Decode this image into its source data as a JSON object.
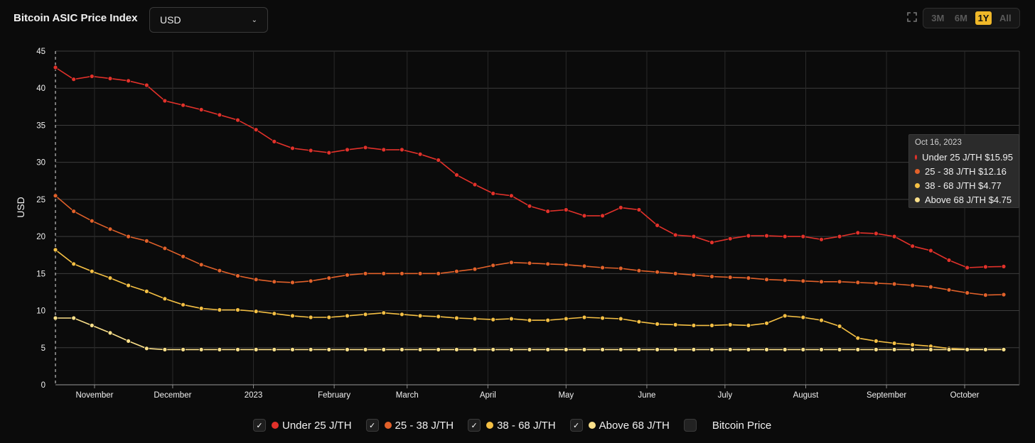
{
  "header": {
    "title": "Bitcoin ASIC Price Index"
  },
  "currency_select": {
    "value": "USD"
  },
  "range": {
    "options": [
      "3M",
      "6M",
      "1Y",
      "All"
    ],
    "selected": "1Y"
  },
  "tooltip": {
    "date": "Oct 16, 2023",
    "rows": [
      {
        "label": "Under 25 J/TH $15.95",
        "color": "#e2312a"
      },
      {
        "label": "25 - 38 J/TH $12.16",
        "color": "#e2612a"
      },
      {
        "label": "38 - 68 J/TH $4.77",
        "color": "#f5c044"
      },
      {
        "label": "Above 68 J/TH $4.75",
        "color": "#fbe08a"
      }
    ]
  },
  "legend": {
    "items": [
      {
        "label": "Under 25 J/TH",
        "color": "#e2312a",
        "checked": true
      },
      {
        "label": "25 - 38 J/TH",
        "color": "#e2612a",
        "checked": true
      },
      {
        "label": "38 - 68 J/TH",
        "color": "#f5c044",
        "checked": true
      },
      {
        "label": "Above 68 J/TH",
        "color": "#fbe08a",
        "checked": true
      },
      {
        "label": "Bitcoin Price",
        "color": "",
        "checked": false
      }
    ]
  },
  "chart_data": {
    "type": "line",
    "ylabel": "USD",
    "ylim": [
      0,
      45
    ],
    "yticks": [
      0,
      5,
      10,
      15,
      20,
      25,
      30,
      35,
      40,
      45
    ],
    "x_start": "2022-10-17",
    "x_end": "2023-10-22",
    "month_ticks": [
      {
        "label": "November",
        "date": "2022-11-01"
      },
      {
        "label": "December",
        "date": "2022-12-01"
      },
      {
        "label": "2023",
        "date": "2023-01-01"
      },
      {
        "label": "February",
        "date": "2023-02-01"
      },
      {
        "label": "March",
        "date": "2023-03-01"
      },
      {
        "label": "April",
        "date": "2023-04-01"
      },
      {
        "label": "May",
        "date": "2023-05-01"
      },
      {
        "label": "June",
        "date": "2023-06-01"
      },
      {
        "label": "July",
        "date": "2023-07-01"
      },
      {
        "label": "August",
        "date": "2023-08-01"
      },
      {
        "label": "September",
        "date": "2023-09-01"
      },
      {
        "label": "October",
        "date": "2023-10-01"
      }
    ],
    "x": [
      "2022-10-17",
      "2022-10-24",
      "2022-10-31",
      "2022-11-07",
      "2022-11-14",
      "2022-11-21",
      "2022-11-28",
      "2022-12-05",
      "2022-12-12",
      "2022-12-19",
      "2022-12-26",
      "2023-01-02",
      "2023-01-09",
      "2023-01-16",
      "2023-01-23",
      "2023-01-30",
      "2023-02-06",
      "2023-02-13",
      "2023-02-20",
      "2023-02-27",
      "2023-03-06",
      "2023-03-13",
      "2023-03-20",
      "2023-03-27",
      "2023-04-03",
      "2023-04-10",
      "2023-04-17",
      "2023-04-24",
      "2023-05-01",
      "2023-05-08",
      "2023-05-15",
      "2023-05-22",
      "2023-05-29",
      "2023-06-05",
      "2023-06-12",
      "2023-06-19",
      "2023-06-26",
      "2023-07-03",
      "2023-07-10",
      "2023-07-17",
      "2023-07-24",
      "2023-07-31",
      "2023-08-07",
      "2023-08-14",
      "2023-08-21",
      "2023-08-28",
      "2023-09-04",
      "2023-09-11",
      "2023-09-18",
      "2023-09-25",
      "2023-10-02",
      "2023-10-09",
      "2023-10-16"
    ],
    "series": [
      {
        "name": "Under 25 J/TH",
        "color": "#e2312a",
        "values": [
          42.8,
          41.2,
          41.6,
          41.3,
          41.0,
          40.4,
          38.3,
          37.7,
          37.1,
          36.4,
          35.7,
          34.4,
          32.8,
          31.9,
          31.6,
          31.3,
          31.7,
          32.0,
          31.7,
          31.7,
          31.1,
          30.3,
          28.3,
          27.0,
          25.8,
          25.5,
          24.1,
          23.4,
          23.6,
          22.8,
          22.8,
          23.9,
          23.6,
          21.5,
          20.2,
          20.0,
          19.2,
          19.7,
          20.1,
          20.1,
          20.0,
          20.0,
          19.6,
          20.0,
          20.5,
          20.4,
          20.0,
          18.7,
          18.1,
          16.8,
          15.8,
          15.9,
          15.95
        ]
      },
      {
        "name": "25 - 38 J/TH",
        "color": "#e2612a",
        "values": [
          25.5,
          23.4,
          22.1,
          21.0,
          20.0,
          19.4,
          18.4,
          17.3,
          16.2,
          15.4,
          14.7,
          14.2,
          13.9,
          13.8,
          14.0,
          14.4,
          14.8,
          15.0,
          15.0,
          15.0,
          15.0,
          15.0,
          15.3,
          15.6,
          16.1,
          16.5,
          16.4,
          16.3,
          16.2,
          16.0,
          15.8,
          15.7,
          15.4,
          15.2,
          15.0,
          14.8,
          14.6,
          14.5,
          14.4,
          14.2,
          14.1,
          14.0,
          13.9,
          13.9,
          13.8,
          13.7,
          13.6,
          13.4,
          13.2,
          12.8,
          12.4,
          12.1,
          12.16
        ]
      },
      {
        "name": "38 - 68 J/TH",
        "color": "#f5c044",
        "values": [
          18.2,
          16.3,
          15.3,
          14.4,
          13.4,
          12.6,
          11.6,
          10.8,
          10.3,
          10.1,
          10.1,
          9.9,
          9.6,
          9.3,
          9.1,
          9.1,
          9.3,
          9.5,
          9.7,
          9.5,
          9.3,
          9.2,
          9.0,
          8.9,
          8.8,
          8.9,
          8.7,
          8.7,
          8.9,
          9.1,
          9.0,
          8.9,
          8.5,
          8.2,
          8.1,
          8.0,
          8.0,
          8.1,
          8.0,
          8.3,
          9.3,
          9.1,
          8.7,
          7.9,
          6.3,
          5.9,
          5.6,
          5.4,
          5.2,
          4.9,
          4.8,
          4.77,
          4.77
        ]
      },
      {
        "name": "Above 68 J/TH",
        "color": "#fbe08a",
        "values": [
          9.0,
          9.0,
          8.0,
          7.0,
          5.9,
          4.9,
          4.75,
          4.75,
          4.75,
          4.75,
          4.75,
          4.75,
          4.75,
          4.75,
          4.75,
          4.75,
          4.75,
          4.75,
          4.75,
          4.75,
          4.75,
          4.75,
          4.75,
          4.75,
          4.75,
          4.75,
          4.75,
          4.75,
          4.75,
          4.75,
          4.75,
          4.75,
          4.75,
          4.75,
          4.75,
          4.75,
          4.75,
          4.75,
          4.75,
          4.75,
          4.75,
          4.75,
          4.75,
          4.75,
          4.75,
          4.75,
          4.75,
          4.75,
          4.75,
          4.75,
          4.75,
          4.75,
          4.75
        ]
      }
    ],
    "grid": true,
    "legend_position": "bottom"
  }
}
